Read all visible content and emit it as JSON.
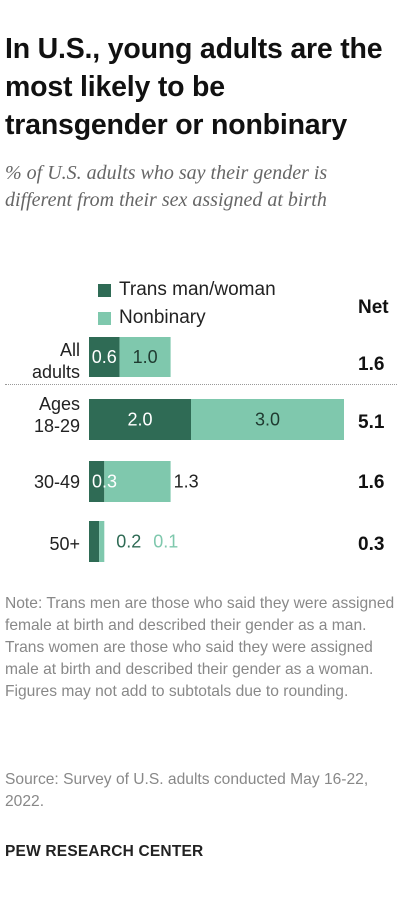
{
  "title": "In U.S., young adults are the most likely to be transgender or nonbinary",
  "subtitle": "% of U.S. adults who say their gender is different from their sex assigned at birth",
  "net_header": "Net",
  "note": "Note: Trans men are those who said they were assigned female at birth and described their gender as a man. Trans women are those who said they were assigned male at birth and described their gender as a woman. Figures may not add to subtotals due to rounding.",
  "source": "Source: Survey of U.S. adults conducted May 16-22, 2022.",
  "credit": "PEW RESEARCH CENTER",
  "colors": {
    "trans": "#2f6b55",
    "nonbinary": "#7fc8ad"
  },
  "chart_data": {
    "type": "bar",
    "orientation": "horizontal",
    "stacked": true,
    "categories": [
      {
        "label_lines": [
          "All",
          "adults"
        ]
      },
      {
        "label_lines": [
          "Ages",
          "18-29"
        ]
      },
      {
        "label_lines": [
          "30-49"
        ]
      },
      {
        "label_lines": [
          "50+"
        ]
      }
    ],
    "series": [
      {
        "name": "Trans man/woman",
        "values": [
          0.6,
          2.0,
          0.3,
          0.2
        ],
        "labels": [
          "0.6",
          "2.0",
          "0.3",
          "0.2"
        ]
      },
      {
        "name": "Nonbinary",
        "values": [
          1.0,
          3.0,
          1.3,
          0.1
        ],
        "labels": [
          "1.0",
          "3.0",
          "1.3",
          "0.1"
        ]
      }
    ],
    "net": [
      "1.6",
      "5.1",
      "1.6",
      "0.3"
    ],
    "legend": "top"
  }
}
